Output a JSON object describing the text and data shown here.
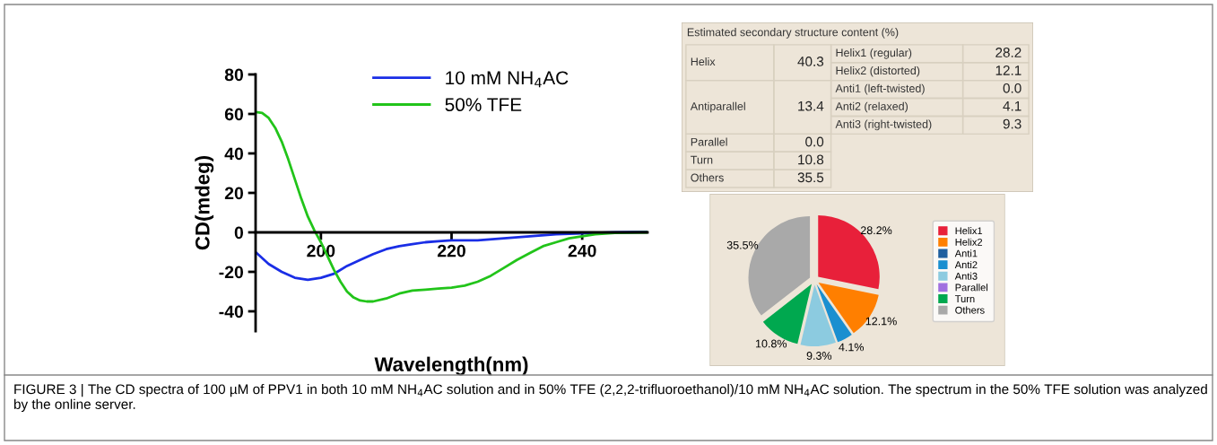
{
  "chart_data": [
    {
      "type": "line",
      "xlabel": "Wavelength(nm)",
      "ylabel": "CD(mdeg)",
      "xlim": [
        190,
        250
      ],
      "ylim": [
        -50,
        80
      ],
      "xticks": [
        200,
        220,
        240
      ],
      "yticks": [
        -40,
        -20,
        0,
        20,
        40,
        60,
        80
      ],
      "grid": false,
      "legend": "top",
      "marker": "none",
      "line_style": "solid",
      "series": [
        {
          "name": "10 mM NH$_{4}$AC",
          "color": "#1a2ee6",
          "x": [
            190,
            192,
            194,
            196,
            198,
            200,
            202,
            204,
            206,
            208,
            210,
            212,
            214,
            216,
            218,
            220,
            224,
            228,
            232,
            236,
            240,
            245,
            250
          ],
          "values": [
            -10,
            -16,
            -20,
            -23,
            -24,
            -23,
            -21,
            -17,
            -14,
            -11,
            -8.5,
            -7,
            -6,
            -5,
            -4.5,
            -4,
            -4,
            -3,
            -2,
            -1,
            -0.5,
            0,
            0.3
          ]
        },
        {
          "name": "50% TFE",
          "color": "#22c41a",
          "x": [
            190,
            191,
            192,
            193,
            194,
            195,
            196,
            197,
            198,
            199,
            200,
            201,
            202,
            203,
            204,
            205,
            206,
            207,
            208,
            210,
            212,
            214,
            216,
            218,
            220,
            222,
            224,
            226,
            228,
            230,
            232,
            234,
            236,
            238,
            240,
            242,
            245,
            250
          ],
          "values": [
            61,
            60.5,
            58,
            53,
            46,
            37,
            27,
            17,
            8,
            1,
            -5,
            -12,
            -19,
            -25,
            -30,
            -33,
            -34.5,
            -35,
            -35,
            -33.5,
            -31,
            -29.5,
            -29,
            -28.5,
            -28,
            -27,
            -25,
            -22,
            -18,
            -14,
            -10.5,
            -7,
            -5,
            -3,
            -2,
            -1,
            -0.3,
            0
          ]
        }
      ],
      "annotations": [
        "FIGURE 3 | The CD spectra of 100 µM of PPV1 in both 10 mM NH$_{4}$AC solution and in 50% TFE (2,2,2-trifluoroethanol)/10 mM NH$_{4}$AC solution. The spectrum in the 50% TFE solution was analyzed by the online server."
      ]
    },
    {
      "type": "other",
      "title": "Estimated secondary structure content (%)",
      "annotations": [
        "Helix",
        "40.3",
        "Helix1 (regular)",
        "28.2",
        "Helix2 (distorted)",
        "12.1",
        "Antiparallel",
        "13.4",
        "Anti1 (left-twisted)",
        "0.0",
        "Anti2 (relaxed)",
        "4.1",
        "Anti3 (right-twisted)",
        "9.3",
        "Parallel",
        "0.0",
        "Turn",
        "10.8",
        "Others",
        "35.5"
      ]
    },
    {
      "type": "pie",
      "categories": [
        "Helix1",
        "Helix2",
        "Anti1",
        "Anti2",
        "Anti3",
        "Parallel",
        "Turn",
        "Others"
      ],
      "values": [
        28.2,
        12.1,
        0.0,
        4.1,
        9.3,
        0.0,
        10.8,
        35.5
      ],
      "colors": [
        "#e8203a",
        "#ff7f00",
        "#1f5f9f",
        "#1a8fd0",
        "#8ccbe0",
        "#a070e0",
        "#00a84f",
        "#a9a9a9"
      ],
      "value_labels": [
        "28.2%",
        "12.1%",
        null,
        "4.1%",
        "9.3%",
        null,
        "10.8%",
        "35.5%"
      ],
      "legend": "right"
    }
  ]
}
